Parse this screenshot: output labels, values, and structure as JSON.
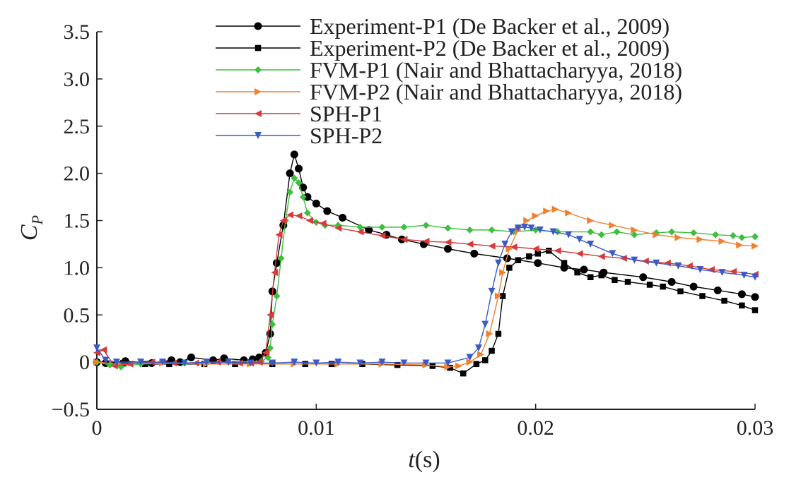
{
  "chart_data": {
    "type": "line",
    "title": "",
    "xlabel": {
      "italic": "t",
      "rest": "(s)"
    },
    "ylabel": {
      "italic": "C",
      "sub": "P"
    },
    "xlim": [
      0,
      0.03
    ],
    "ylim": [
      -0.5,
      3.5
    ],
    "xticks": [
      0,
      0.01,
      0.02,
      0.03
    ],
    "xtick_labels": [
      "0",
      "0.01",
      "0.02",
      "0.03"
    ],
    "yticks": [
      -0.5,
      0,
      0.5,
      1.0,
      1.5,
      2.0,
      2.5,
      3.0,
      3.5
    ],
    "ytick_labels": [
      "−0.5",
      "0",
      "0.5",
      "1.0",
      "1.5",
      "2.0",
      "2.5",
      "3.0",
      "3.5"
    ],
    "grid": false,
    "legend_position": "top-right",
    "series": [
      {
        "name": "Experiment-P1 (De Backer et al., 2009)",
        "color": "#000000",
        "marker": "circle",
        "x": [
          0,
          0.0004,
          0.0013,
          0.0025,
          0.0034,
          0.0038,
          0.0043,
          0.0053,
          0.0058,
          0.0067,
          0.0071,
          0.0074,
          0.0077,
          0.0079,
          0.008,
          0.0082,
          0.0085,
          0.0088,
          0.009,
          0.0092,
          0.0094,
          0.0096,
          0.01,
          0.0105,
          0.0112,
          0.0124,
          0.0132,
          0.0139,
          0.0149,
          0.016,
          0.0172,
          0.0187,
          0.0201,
          0.0213,
          0.0222,
          0.0231,
          0.0249,
          0.0262,
          0.0272,
          0.0283,
          0.0294,
          0.03
        ],
        "values": [
          0.0,
          -0.01,
          0.01,
          -0.01,
          0.02,
          0.0,
          0.05,
          0.02,
          0.04,
          0.02,
          0.03,
          0.05,
          0.1,
          0.3,
          0.75,
          1.05,
          1.45,
          2.0,
          2.2,
          2.05,
          1.85,
          1.75,
          1.68,
          1.6,
          1.53,
          1.4,
          1.35,
          1.3,
          1.25,
          1.2,
          1.15,
          1.1,
          1.05,
          1.0,
          0.98,
          0.95,
          0.9,
          0.85,
          0.8,
          0.76,
          0.72,
          0.69
        ]
      },
      {
        "name": "Experiment-P2 (De Backer et al., 2009)",
        "color": "#000000",
        "marker": "square",
        "x": [
          0,
          0.0012,
          0.0022,
          0.0033,
          0.0049,
          0.0063,
          0.008,
          0.0095,
          0.0107,
          0.0121,
          0.0137,
          0.0153,
          0.0161,
          0.0167,
          0.0173,
          0.0177,
          0.018,
          0.0183,
          0.0185,
          0.0188,
          0.0192,
          0.0197,
          0.0201,
          0.0206,
          0.0213,
          0.0219,
          0.0225,
          0.023,
          0.0236,
          0.0242,
          0.0252,
          0.0258,
          0.0266,
          0.0276,
          0.0286,
          0.0294,
          0.03
        ],
        "values": [
          0.0,
          -0.01,
          -0.02,
          -0.02,
          -0.02,
          -0.02,
          -0.02,
          -0.02,
          -0.02,
          -0.02,
          -0.03,
          -0.04,
          -0.06,
          -0.12,
          -0.02,
          0.02,
          0.12,
          0.3,
          0.7,
          1.0,
          1.08,
          1.12,
          1.15,
          1.18,
          1.05,
          0.95,
          0.9,
          0.92,
          0.87,
          0.85,
          0.82,
          0.8,
          0.75,
          0.7,
          0.65,
          0.6,
          0.55
        ]
      },
      {
        "name": "FVM-P1 (Nair and Bhattacharyya, 2018)",
        "color": "#3fbf3f",
        "marker": "diamond",
        "x": [
          0,
          0.0006,
          0.0011,
          0.002,
          0.004,
          0.006,
          0.0075,
          0.0078,
          0.0079,
          0.008,
          0.0082,
          0.0084,
          0.0086,
          0.0088,
          0.009,
          0.0092,
          0.0094,
          0.0096,
          0.01,
          0.0104,
          0.011,
          0.012,
          0.013,
          0.014,
          0.015,
          0.016,
          0.017,
          0.018,
          0.019,
          0.02,
          0.021,
          0.0225,
          0.023,
          0.0237,
          0.0245,
          0.0255,
          0.0262,
          0.0272,
          0.0282,
          0.029,
          0.0294,
          0.03
        ],
        "values": [
          0.0,
          -0.03,
          -0.05,
          -0.02,
          -0.01,
          0.0,
          0.01,
          0.05,
          0.15,
          0.4,
          0.7,
          1.1,
          1.5,
          1.8,
          1.95,
          1.9,
          1.75,
          1.58,
          1.48,
          1.45,
          1.45,
          1.43,
          1.43,
          1.43,
          1.45,
          1.42,
          1.4,
          1.4,
          1.38,
          1.4,
          1.38,
          1.38,
          1.35,
          1.38,
          1.35,
          1.37,
          1.38,
          1.37,
          1.35,
          1.34,
          1.32,
          1.33
        ]
      },
      {
        "name": "FVM-P2 (Nair and Bhattacharyya, 2018)",
        "color": "#f07f2f",
        "marker": "triangle-right",
        "x": [
          0,
          0.001,
          0.003,
          0.005,
          0.007,
          0.009,
          0.011,
          0.013,
          0.015,
          0.016,
          0.0165,
          0.017,
          0.0175,
          0.0179,
          0.0183,
          0.0185,
          0.0188,
          0.0192,
          0.0196,
          0.02,
          0.0205,
          0.0209,
          0.0215,
          0.0225,
          0.0235,
          0.0245,
          0.0255,
          0.0265,
          0.0275,
          0.0285,
          0.0293,
          0.03
        ],
        "values": [
          0.0,
          -0.02,
          -0.01,
          -0.02,
          -0.02,
          -0.02,
          -0.02,
          -0.02,
          -0.03,
          -0.05,
          -0.04,
          0.0,
          0.08,
          0.3,
          0.7,
          0.95,
          1.2,
          1.4,
          1.5,
          1.55,
          1.6,
          1.62,
          1.58,
          1.5,
          1.45,
          1.4,
          1.35,
          1.32,
          1.3,
          1.28,
          1.24,
          1.23
        ]
      },
      {
        "name": "SPH-P1",
        "color": "#d63a3a",
        "marker": "triangle-left",
        "x": [
          0,
          0.0003,
          0.0008,
          0.0015,
          0.0025,
          0.0035,
          0.0045,
          0.0055,
          0.0065,
          0.007,
          0.0074,
          0.0077,
          0.0079,
          0.0081,
          0.0083,
          0.0085,
          0.0088,
          0.0092,
          0.0097,
          0.0103,
          0.011,
          0.012,
          0.013,
          0.014,
          0.015,
          0.016,
          0.017,
          0.018,
          0.019,
          0.02,
          0.021,
          0.022,
          0.023,
          0.024,
          0.025,
          0.026,
          0.027,
          0.028,
          0.029,
          0.03
        ],
        "values": [
          0.1,
          0.13,
          -0.04,
          -0.02,
          0.0,
          -0.01,
          -0.01,
          0.0,
          -0.01,
          -0.01,
          0.0,
          0.1,
          0.5,
          0.95,
          1.35,
          1.5,
          1.56,
          1.55,
          1.5,
          1.47,
          1.42,
          1.38,
          1.34,
          1.3,
          1.28,
          1.27,
          1.25,
          1.23,
          1.22,
          1.2,
          1.18,
          1.15,
          1.12,
          1.1,
          1.07,
          1.05,
          1.02,
          0.98,
          0.96,
          0.93
        ]
      },
      {
        "name": "SPH-P2",
        "color": "#3a5bc7",
        "marker": "triangle-down",
        "x": [
          0,
          0.0004,
          0.0009,
          0.002,
          0.003,
          0.004,
          0.005,
          0.006,
          0.007,
          0.008,
          0.009,
          0.01,
          0.011,
          0.012,
          0.013,
          0.014,
          0.015,
          0.016,
          0.017,
          0.0174,
          0.0177,
          0.018,
          0.0183,
          0.0186,
          0.0189,
          0.0192,
          0.0195,
          0.0198,
          0.0202,
          0.0208,
          0.0215,
          0.022,
          0.0225,
          0.0235,
          0.0245,
          0.0255,
          0.0265,
          0.0275,
          0.0285,
          0.0295,
          0.03
        ],
        "values": [
          0.15,
          0.02,
          0.0,
          0.0,
          0.0,
          -0.01,
          0.0,
          0.0,
          -0.01,
          -0.01,
          0.0,
          -0.01,
          0.0,
          -0.01,
          0.0,
          -0.01,
          -0.01,
          -0.01,
          0.05,
          0.15,
          0.4,
          0.75,
          1.05,
          1.25,
          1.38,
          1.42,
          1.43,
          1.42,
          1.4,
          1.38,
          1.35,
          1.3,
          1.25,
          1.15,
          1.08,
          1.05,
          1.02,
          0.98,
          0.95,
          0.92,
          0.9
        ]
      }
    ]
  }
}
